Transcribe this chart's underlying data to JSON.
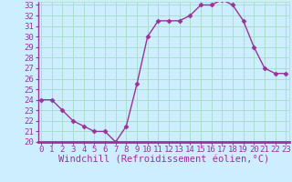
{
  "hours": [
    0,
    1,
    2,
    3,
    4,
    5,
    6,
    7,
    8,
    9,
    10,
    11,
    12,
    13,
    14,
    15,
    16,
    17,
    18,
    19,
    20,
    21,
    22,
    23
  ],
  "values": [
    24.0,
    24.0,
    23.0,
    22.0,
    21.5,
    21.0,
    21.0,
    20.0,
    21.5,
    25.5,
    30.0,
    31.5,
    31.5,
    31.5,
    32.0,
    33.0,
    33.0,
    33.5,
    33.0,
    31.5,
    29.0,
    27.0,
    26.5,
    26.5
  ],
  "line_color": "#993399",
  "marker": "D",
  "marker_size": 2.5,
  "background_color": "#cceeff",
  "grid_color": "#aaddcc",
  "xlabel": "Windchill (Refroidissement éolien,°C)",
  "ylim": [
    20,
    33
  ],
  "yticks": [
    20,
    21,
    22,
    23,
    24,
    25,
    26,
    27,
    28,
    29,
    30,
    31,
    32,
    33
  ],
  "xlim": [
    0,
    23
  ],
  "xtick_labels": [
    "0",
    "1",
    "2",
    "3",
    "4",
    "5",
    "6",
    "7",
    "8",
    "9",
    "10",
    "11",
    "12",
    "13",
    "14",
    "15",
    "16",
    "17",
    "18",
    "19",
    "20",
    "21",
    "22",
    "23"
  ],
  "tick_fontsize": 6.5,
  "xlabel_fontsize": 7.5,
  "line_color_axis": "#993399",
  "tick_color": "#993399",
  "spine_color": "#993399"
}
